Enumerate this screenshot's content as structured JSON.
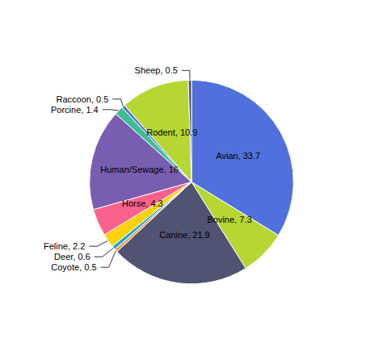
{
  "chart_data": {
    "type": "pie",
    "categories": [
      "Avian",
      "Bovine",
      "Canine",
      "Coyote",
      "Deer",
      "Feline",
      "Horse",
      "Human/Sewage",
      "Porcine",
      "Raccoon",
      "Rodent",
      "Sheep"
    ],
    "values": [
      33.7,
      7.3,
      21.9,
      0.5,
      0.6,
      2.2,
      4.3,
      16.0,
      1.4,
      0.5,
      10.9,
      0.5
    ],
    "value_labels": [
      "Avian, 33.7",
      "Bovine, 7.3",
      "Canine, 21.9",
      "Coyote, 0.5",
      "Deer, 0.6",
      "Feline, 2.2",
      "Horse, 4.3",
      "Human/Sewage, 16",
      "Porcine, 1.4",
      "Raccoon, 0.5",
      "Rodent, 10.9",
      "Sheep, 0.5"
    ],
    "data_labels": true
  }
}
